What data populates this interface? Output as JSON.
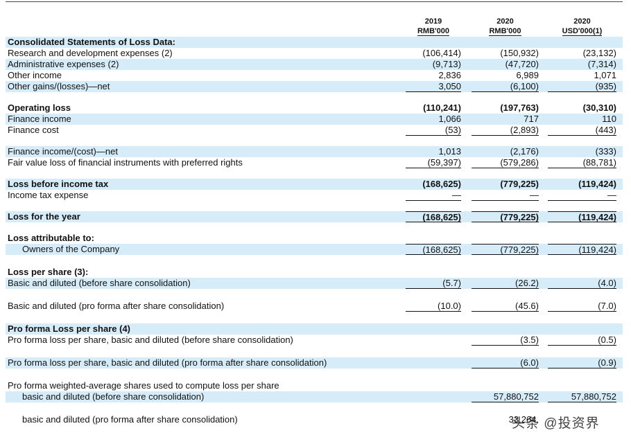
{
  "header": {
    "columns": [
      {
        "year": "2019",
        "unit": "RMB'000"
      },
      {
        "year": "2020",
        "unit": "RMB'000"
      },
      {
        "year": "2020",
        "unit": "USD'000(1)"
      }
    ]
  },
  "table": {
    "rows": [
      {
        "label": "Consolidated Statements of Loss Data:",
        "values": []
      },
      {
        "label": "Research and development expenses (2)",
        "values": [
          "(106,414)",
          "(150,932)",
          "(23,132)"
        ]
      },
      {
        "label": "Administrative expenses (2)",
        "values": [
          "(9,713)",
          "(47,720)",
          "(7,314)"
        ]
      },
      {
        "label": "Other income",
        "values": [
          "2,836",
          "6,989",
          "1,071"
        ]
      },
      {
        "label": "Other gains/(losses)—net",
        "values": [
          "3,050",
          "(6,100)",
          "(935)"
        ]
      },
      {
        "label": "Operating loss",
        "values": [
          "(110,241)",
          "(197,763)",
          "(30,310)"
        ]
      },
      {
        "label": "Finance income",
        "values": [
          "1,066",
          "717",
          "110"
        ]
      },
      {
        "label": "Finance cost",
        "values": [
          "(53)",
          "(2,893)",
          "(443)"
        ]
      },
      {
        "label": "Finance income/(cost)—net",
        "values": [
          "1,013",
          "(2,176)",
          "(333)"
        ]
      },
      {
        "label": "Fair value loss of financial instruments with preferred rights",
        "values": [
          "(59,397)",
          "(579,286)",
          "(88,781)"
        ]
      },
      {
        "label": "Loss before income tax",
        "values": [
          "(168,625)",
          "(779,225)",
          "(119,424)"
        ]
      },
      {
        "label": "Income tax expense",
        "values": [
          "—",
          "—",
          "—"
        ]
      },
      {
        "label": "Loss for the year",
        "values": [
          "(168,625)",
          "(779,225)",
          "(119,424)"
        ]
      },
      {
        "label": "Loss attributable to:",
        "values": []
      },
      {
        "label": "Owners of the Company",
        "values": [
          "(168,625)",
          "(779,225)",
          "(119,424)"
        ]
      },
      {
        "label": "Loss per share (3):",
        "values": []
      },
      {
        "label": "Basic and diluted (before share consolidation)",
        "values": [
          "(5.7)",
          "(26.2)",
          "(4.0)"
        ]
      },
      {
        "label": "Basic and diluted (pro forma after share consolidation)",
        "values": [
          "(10.0)",
          "(45.6)",
          "(7.0)"
        ]
      },
      {
        "label": "Pro forma Loss per share (4)",
        "values": []
      },
      {
        "label": "Pro forma loss per share, basic and diluted (before share consolidation)",
        "values": [
          "(3.5)",
          "(0.5)"
        ]
      },
      {
        "label": "Pro forma loss per share, basic and diluted (pro forma after share consolidation)",
        "values": [
          "(6.0)",
          "(0.9)"
        ]
      },
      {
        "label": "Pro forma weighted-average shares used to compute loss per share",
        "values": []
      },
      {
        "label": "basic and diluted (before share consolidation)",
        "values": [
          "57,880,752",
          "57,880,752"
        ]
      },
      {
        "label": "basic and diluted (pro forma after share consolidation)",
        "values": [
          "33,264,"
        ]
      }
    ]
  },
  "watermark": "头条 @投资界"
}
